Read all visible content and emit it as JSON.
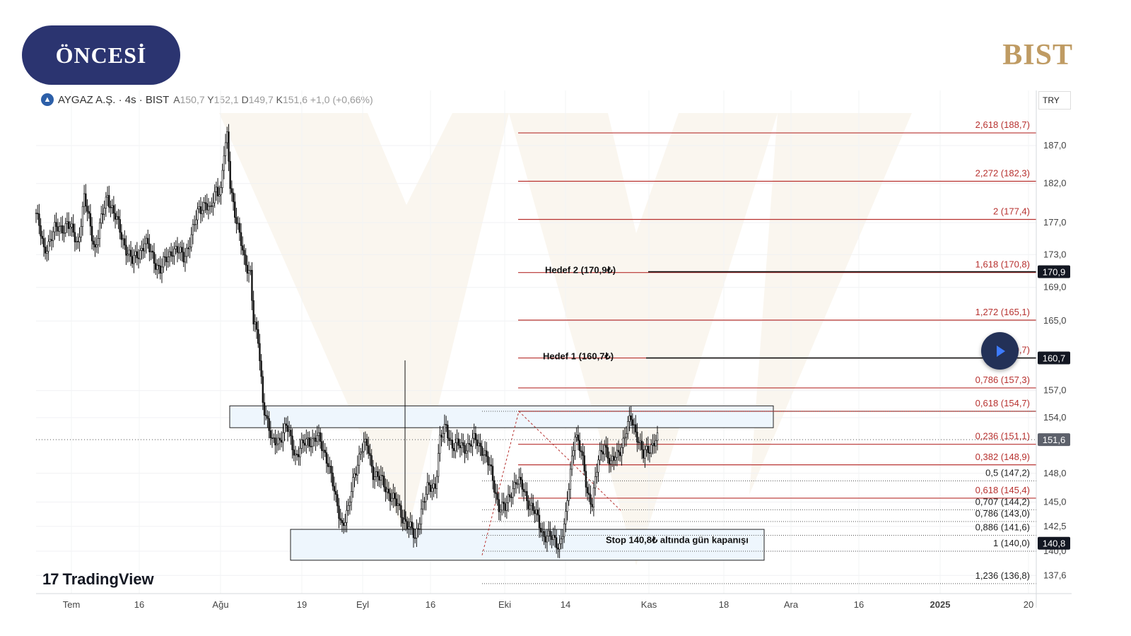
{
  "header": {
    "badge": "ÖNCESİ",
    "brand": "BIST"
  },
  "legend": {
    "symbol": "AYGAZ A.Ş. · 4s · BIST",
    "open_label": "A",
    "open": "150,7",
    "high_label": "Y",
    "high": "152,1",
    "low_label": "D",
    "low": "149,7",
    "close_label": "K",
    "close": "151,6",
    "change": "+1,0 (+0,66%)"
  },
  "currency": "TRY",
  "watermark": "TradingView",
  "colors": {
    "badge": "#2b3470",
    "brand": "#bf9b63",
    "fib": "#b7312f",
    "box_fill": "#eef6fd"
  },
  "chart_data": {
    "type": "candlestick",
    "title": "AYGAZ A.Ş. · 4s · BIST",
    "ylim": [
      134.5,
      194.5
    ],
    "y_scale": "log",
    "x_ticks": [
      "Tem",
      "16",
      "Ağu",
      "19",
      "Eyl",
      "16",
      "Eki",
      "14",
      "Kas",
      "18",
      "Ara",
      "16",
      "2025",
      "20"
    ],
    "y_ticks": [
      "187,0",
      "182,0",
      "177,0",
      "173,0",
      "169,0",
      "165,0",
      "157,0",
      "154,0",
      "148,0",
      "145,0",
      "142,5",
      "140,0",
      "137,6"
    ],
    "price_badges": [
      {
        "label": "170,9",
        "price": 170.9,
        "style": "dark"
      },
      {
        "label": "160,7",
        "price": 160.7,
        "style": "dark"
      },
      {
        "label": "151,6",
        "price": 151.6,
        "style": "grey"
      },
      {
        "label": "140,8",
        "price": 140.8,
        "style": "dark"
      }
    ],
    "fib_upper": [
      {
        "label": "2,618 (188,7)",
        "price": 188.7
      },
      {
        "label": "2,272 (182,3)",
        "price": 182.3
      },
      {
        "label": "2 (177,4)",
        "price": 177.4
      },
      {
        "label": "1,618 (170,8)",
        "price": 170.8
      },
      {
        "label": "1,272 (165,1)",
        "price": 165.1
      },
      {
        "label": "(160,7)",
        "price": 160.7
      },
      {
        "label": "0,786 (157,3)",
        "price": 157.3
      },
      {
        "label": "0,618 (154,7)",
        "price": 154.7
      },
      {
        "label": "0,236 (151,1)",
        "price": 151.1
      },
      {
        "label": "0,382 (148,9)",
        "price": 148.9
      },
      {
        "label": "0,618 (145,4)",
        "price": 145.4
      }
    ],
    "fib_lower": [
      {
        "label": "0,5 (147,2)",
        "price": 147.2
      },
      {
        "label": "0,707 (144,2)",
        "price": 144.2
      },
      {
        "label": "0,786 (143,0)",
        "price": 143.0
      },
      {
        "label": "0,886 (141,6)",
        "price": 141.6
      },
      {
        "label": "1 (140,0)",
        "price": 140.0
      },
      {
        "label": "1,236 (136,8)",
        "price": 136.8
      }
    ],
    "annotations": [
      {
        "text": "Hedef 2 (170,9₺)",
        "price": 170.9
      },
      {
        "text": "Hedef 1 (160,7₺)",
        "price": 160.7
      },
      {
        "text": "Stop 140,8₺ altında gün kapanışı",
        "price": 140.8
      }
    ],
    "zones": [
      {
        "name": "resistance",
        "top": 155.3,
        "bottom": 152.9
      },
      {
        "name": "support",
        "top": 142.2,
        "bottom": 139.1
      }
    ],
    "price_series_key": [
      [
        0,
        178.2
      ],
      [
        5,
        173.5
      ],
      [
        12,
        176.0
      ],
      [
        20,
        176.8
      ],
      [
        27,
        174.5
      ],
      [
        31,
        180.0
      ],
      [
        38,
        173.8
      ],
      [
        46,
        180.6
      ],
      [
        55,
        175.3
      ],
      [
        62,
        172.0
      ],
      [
        70,
        174.5
      ],
      [
        80,
        171.1
      ],
      [
        88,
        173.8
      ],
      [
        95,
        172.7
      ],
      [
        100,
        175.2
      ],
      [
        105,
        178.8
      ],
      [
        109,
        179.6
      ],
      [
        112,
        178.1
      ],
      [
        116,
        181.5
      ],
      [
        119,
        181.1
      ],
      [
        121,
        185.9
      ],
      [
        123,
        187.8
      ],
      [
        125,
        182.0
      ],
      [
        128,
        178.5
      ],
      [
        131,
        175.2
      ],
      [
        134,
        172.2
      ],
      [
        138,
        171.0
      ],
      [
        140,
        164.9
      ],
      [
        143,
        162.5
      ],
      [
        146,
        156.0
      ],
      [
        149,
        153.6
      ],
      [
        152,
        151.0
      ],
      [
        156,
        151.6
      ],
      [
        161,
        153.0
      ],
      [
        167,
        150.0
      ],
      [
        175,
        151.5
      ],
      [
        181,
        151.8
      ],
      [
        188,
        149.4
      ],
      [
        193,
        145.0
      ],
      [
        197,
        142.8
      ],
      [
        201,
        144.0
      ],
      [
        205,
        148.0
      ],
      [
        209,
        150.5
      ],
      [
        213,
        151.0
      ],
      [
        217,
        148.2
      ],
      [
        223,
        147.0
      ],
      [
        229,
        145.6
      ],
      [
        235,
        143.8
      ],
      [
        240,
        142.5
      ],
      [
        244,
        141.2
      ],
      [
        248,
        144.3
      ],
      [
        252,
        146.2
      ],
      [
        257,
        146.9
      ],
      [
        260,
        151.5
      ],
      [
        264,
        152.9
      ],
      [
        268,
        151.0
      ],
      [
        273,
        150.8
      ],
      [
        278,
        151.0
      ],
      [
        283,
        151.5
      ],
      [
        288,
        150.5
      ],
      [
        293,
        148.0
      ],
      [
        298,
        144.6
      ],
      [
        302,
        144.2
      ],
      [
        306,
        146.3
      ],
      [
        309,
        147.2
      ],
      [
        313,
        146.5
      ],
      [
        318,
        144.8
      ],
      [
        322,
        143.5
      ],
      [
        326,
        141.9
      ],
      [
        329,
        141.5
      ],
      [
        333,
        141.1
      ],
      [
        337,
        140.7
      ],
      [
        341,
        143.2
      ],
      [
        344,
        148.2
      ],
      [
        347,
        152.6
      ],
      [
        351,
        150.0
      ],
      [
        355,
        146.0
      ],
      [
        358,
        145.1
      ],
      [
        362,
        149.2
      ],
      [
        366,
        151.3
      ],
      [
        370,
        148.8
      ],
      [
        374,
        150.0
      ],
      [
        378,
        151.5
      ],
      [
        383,
        153.9
      ],
      [
        387,
        152.2
      ],
      [
        391,
        149.7
      ],
      [
        394,
        150.5
      ],
      [
        398,
        151.6
      ]
    ]
  }
}
